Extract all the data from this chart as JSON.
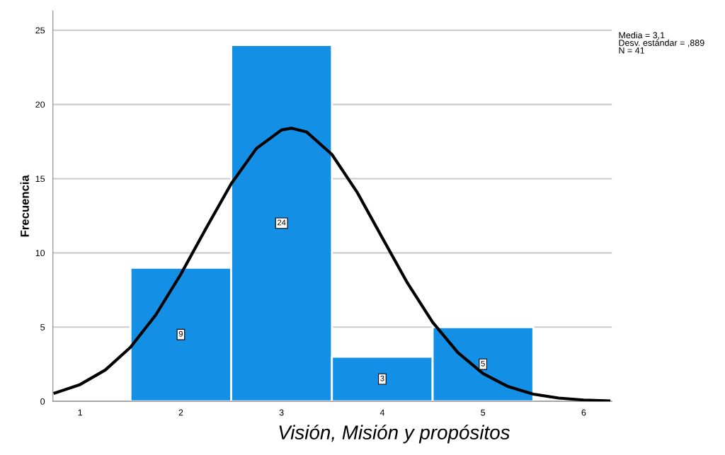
{
  "chart_data": {
    "type": "histogram",
    "xlabel": "Visión, Misión y propósitos",
    "ylabel": "Frecuencia",
    "bins": [
      1.5,
      2.5,
      3.5,
      4.5,
      5.5
    ],
    "values": [
      9,
      24,
      3,
      5
    ],
    "color": "#1390e6",
    "value_labels": [
      "9",
      "24",
      "3",
      "5"
    ],
    "series": [
      {
        "type": "line",
        "color": "#000000",
        "x": [
          0.75,
          1.0,
          1.25,
          1.5,
          1.75,
          2.0,
          2.25,
          2.5,
          2.75,
          3.0,
          3.1,
          3.25,
          3.5,
          3.75,
          4.0,
          4.25,
          4.5,
          4.75,
          5.0,
          5.25,
          5.5,
          5.75,
          6.0,
          6.25
        ],
        "values": [
          0.56,
          1.13,
          2.11,
          3.64,
          5.81,
          8.56,
          11.65,
          14.65,
          17.03,
          18.28,
          18.4,
          18.14,
          16.63,
          14.09,
          11.02,
          7.97,
          5.33,
          3.29,
          1.87,
          0.99,
          0.48,
          0.22,
          0.09,
          0.03
        ]
      }
    ],
    "xlim": [
      0.73,
      6.28
    ],
    "xticks": [
      1,
      2,
      3,
      4,
      5,
      6
    ],
    "ylim": [
      0,
      26.3
    ],
    "yticks": [
      0,
      5,
      10,
      15,
      20,
      25
    ],
    "grid": "y",
    "legend": false,
    "annotations": [
      "Media = 3,1",
      "Desv. estándar = ,889",
      "N = 41"
    ]
  }
}
